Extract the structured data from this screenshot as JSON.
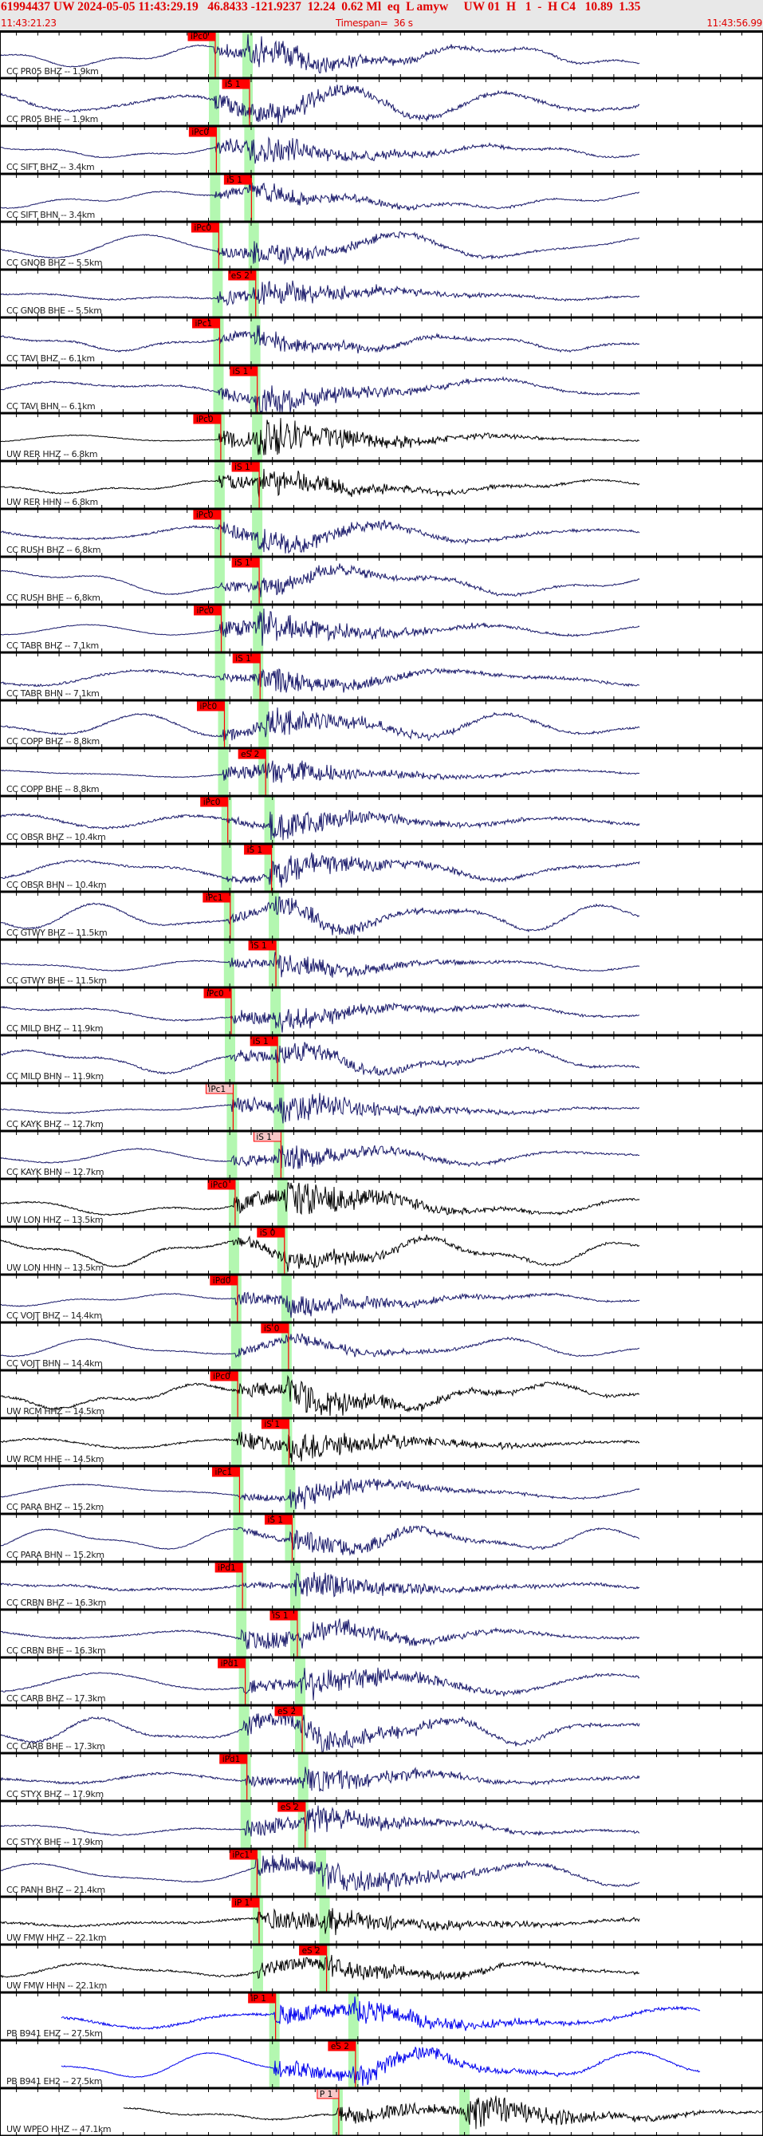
{
  "header": {
    "event_line": "61994437 UW 2024-05-05 11:43:29.19   46.8433 -121.9237  12.24  0.62 Ml  eq  L amyw     UW 01  H   1  -  H C4   10.89  1.35",
    "start_time": "11:43:21.23",
    "timespan": "Timespan=  36 s",
    "end_time": "11:43:56.99"
  },
  "time_axis": {
    "start_seconds": 21.23,
    "span_seconds": 35.76,
    "tick_interval_s": 1
  },
  "colors": {
    "CC": "#1b1b6b",
    "UW": "#000000",
    "PB": "#0000ee",
    "pick": "#ff0000",
    "pick_faint": "#f7c8c8",
    "theoretical_band": "#b3f7b0",
    "text": "#e00000"
  },
  "panels": [
    {
      "label": "CC PR05 BHZ -- 1.9km",
      "net": "CC",
      "dist": 1.9,
      "pick": "iPc0",
      "phase": "P"
    },
    {
      "label": "CC PR05 BHE -- 1.9km",
      "net": "CC",
      "dist": 1.9,
      "pick": "iS 1",
      "phase": "S"
    },
    {
      "label": "CC SIFT BHZ -- 3.4km",
      "net": "CC",
      "dist": 3.4,
      "pick": "iPc0",
      "phase": "P"
    },
    {
      "label": "CC SIFT BHN -- 3.4km",
      "net": "CC",
      "dist": 3.4,
      "pick": "iS 1",
      "phase": "S"
    },
    {
      "label": "CC GNOB BHZ -- 5.5km",
      "net": "CC",
      "dist": 5.5,
      "pick": "iPc0",
      "phase": "P"
    },
    {
      "label": "CC GNOB BHE -- 5.5km",
      "net": "CC",
      "dist": 5.5,
      "pick": "eS 2",
      "phase": "S"
    },
    {
      "label": "CC TAVI BHZ -- 6.1km",
      "net": "CC",
      "dist": 6.1,
      "pick": "iPc1",
      "phase": "P"
    },
    {
      "label": "CC TAVI BHN -- 6.1km",
      "net": "CC",
      "dist": 6.1,
      "pick": "iS 1",
      "phase": "S"
    },
    {
      "label": "UW RER HHZ -- 6.8km",
      "net": "UW",
      "dist": 6.8,
      "pick": "iPc0",
      "phase": "P"
    },
    {
      "label": "UW RER HHN -- 6.8km",
      "net": "UW",
      "dist": 6.8,
      "pick": "iS 1",
      "phase": "S"
    },
    {
      "label": "CC RUSH BHZ -- 6.8km",
      "net": "CC",
      "dist": 6.8,
      "pick": "iPc0",
      "phase": "P"
    },
    {
      "label": "CC RUSH BHE -- 6.8km",
      "net": "CC",
      "dist": 6.8,
      "pick": "iS 1",
      "phase": "S"
    },
    {
      "label": "CC TABR BHZ -- 7.1km",
      "net": "CC",
      "dist": 7.1,
      "pick": "iPc0",
      "phase": "P"
    },
    {
      "label": "CC TABR BHN -- 7.1km",
      "net": "CC",
      "dist": 7.1,
      "pick": "iS 1",
      "phase": "S"
    },
    {
      "label": "CC COPP BHZ -- 8.8km",
      "net": "CC",
      "dist": 8.8,
      "pick": "iPc0",
      "phase": "P"
    },
    {
      "label": "CC COPP BHE -- 8.8km",
      "net": "CC",
      "dist": 8.8,
      "pick": "eS 2",
      "phase": "S"
    },
    {
      "label": "CC OBSR BHZ -- 10.4km",
      "net": "CC",
      "dist": 10.4,
      "pick": "iPc0",
      "phase": "P"
    },
    {
      "label": "CC OBSR BHN -- 10.4km",
      "net": "CC",
      "dist": 10.4,
      "pick": "iS 1",
      "phase": "S"
    },
    {
      "label": "CC GTWY BHZ -- 11.5km",
      "net": "CC",
      "dist": 11.5,
      "pick": "iPc1",
      "phase": "P"
    },
    {
      "label": "CC GTWY BHE -- 11.5km",
      "net": "CC",
      "dist": 11.5,
      "pick": "iS 1",
      "phase": "S"
    },
    {
      "label": "CC MILD BHZ -- 11.9km",
      "net": "CC",
      "dist": 11.9,
      "pick": "iPc0",
      "phase": "P"
    },
    {
      "label": "CC MILD BHN -- 11.9km",
      "net": "CC",
      "dist": 11.9,
      "pick": "iS 1",
      "phase": "S"
    },
    {
      "label": "CC KAYK BHZ -- 12.7km",
      "net": "CC",
      "dist": 12.7,
      "pick": "iPc1",
      "phase": "P",
      "faint": true
    },
    {
      "label": "CC KAYK BHN -- 12.7km",
      "net": "CC",
      "dist": 12.7,
      "pick": "iS 1",
      "phase": "S",
      "faint": true
    },
    {
      "label": "UW LON HHZ -- 13.5km",
      "net": "UW",
      "dist": 13.5,
      "pick": "iPc0",
      "phase": "P"
    },
    {
      "label": "UW LON HHN -- 13.5km",
      "net": "UW",
      "dist": 13.5,
      "pick": "iS 0",
      "phase": "S"
    },
    {
      "label": "CC VOJT BHZ -- 14.4km",
      "net": "CC",
      "dist": 14.4,
      "pick": "iPd0",
      "phase": "P"
    },
    {
      "label": "CC VOJT BHN -- 14.4km",
      "net": "CC",
      "dist": 14.4,
      "pick": "iS 0",
      "phase": "S"
    },
    {
      "label": "UW RCM HHZ -- 14.5km",
      "net": "UW",
      "dist": 14.5,
      "pick": "iPc0",
      "phase": "P"
    },
    {
      "label": "UW RCM HHE -- 14.5km",
      "net": "UW",
      "dist": 14.5,
      "pick": "iS 1",
      "phase": "S"
    },
    {
      "label": "CC PARA BHZ -- 15.2km",
      "net": "CC",
      "dist": 15.2,
      "pick": "iPc1",
      "phase": "P"
    },
    {
      "label": "CC PARA BHN -- 15.2km",
      "net": "CC",
      "dist": 15.2,
      "pick": "iS 1",
      "phase": "S"
    },
    {
      "label": "CC CRBN BHZ -- 16.3km",
      "net": "CC",
      "dist": 16.3,
      "pick": "iPd1",
      "phase": "P"
    },
    {
      "label": "CC CRBN BHE -- 16.3km",
      "net": "CC",
      "dist": 16.3,
      "pick": "iS 1",
      "phase": "S"
    },
    {
      "label": "CC CARB BHZ -- 17.3km",
      "net": "CC",
      "dist": 17.3,
      "pick": "iPd1",
      "phase": "P"
    },
    {
      "label": "CC CARB BHE -- 17.3km",
      "net": "CC",
      "dist": 17.3,
      "pick": "eS 2",
      "phase": "S"
    },
    {
      "label": "CC STYX BHZ -- 17.9km",
      "net": "CC",
      "dist": 17.9,
      "pick": "iPd1",
      "phase": "P"
    },
    {
      "label": "CC STYX BHE -- 17.9km",
      "net": "CC",
      "dist": 17.9,
      "pick": "eS 2",
      "phase": "S"
    },
    {
      "label": "CC PANH BHZ -- 21.4km",
      "net": "CC",
      "dist": 21.4,
      "pick": "iPc1",
      "phase": "P"
    },
    {
      "label": "UW FMW HHZ -- 22.1km",
      "net": "UW",
      "dist": 22.1,
      "pick": "iP 1",
      "phase": "P"
    },
    {
      "label": "UW FMW HHN -- 22.1km",
      "net": "UW",
      "dist": 22.1,
      "pick": "eS 2",
      "phase": "S"
    },
    {
      "label": "PB B941 EHZ -- 27.5km",
      "net": "PB",
      "dist": 27.5,
      "pick": "iP 1",
      "phase": "P"
    },
    {
      "label": "PB B941 EH2 -- 27.5km",
      "net": "PB",
      "dist": 27.5,
      "pick": "eS 2",
      "phase": "S"
    },
    {
      "label": "UW WPEO HHZ -- 47.1km",
      "net": "UW",
      "dist": 47.1,
      "pick": "P 1",
      "phase": "P",
      "faint": true
    }
  ]
}
